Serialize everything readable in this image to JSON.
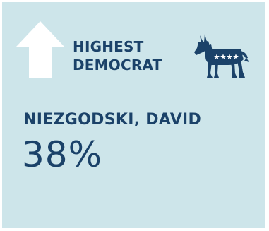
{
  "card": {
    "heading_line1": "HIGHEST",
    "heading_line2": "DEMOCRAT",
    "candidate_name": "NIEZGODSKI, DAVID",
    "percent": "38%"
  },
  "icons": {
    "arrow": "up-arrow-icon",
    "party": "democrat-donkey-icon"
  },
  "colors": {
    "card_background": "#cde5ea",
    "text": "#1b4269",
    "arrow": "#ffffff"
  }
}
